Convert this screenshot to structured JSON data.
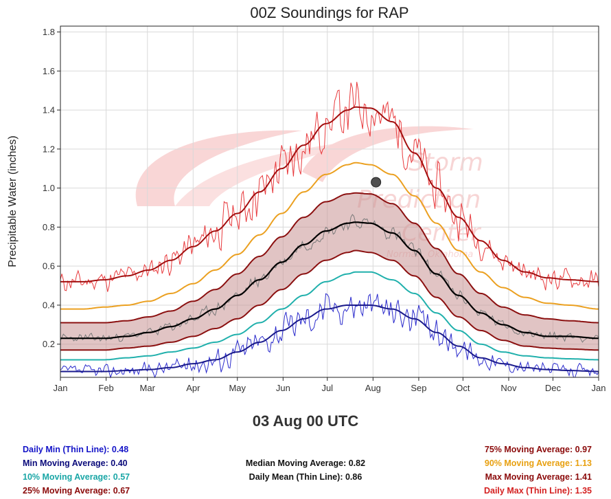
{
  "title": "00Z Soundings for RAP",
  "date_label": "03 Aug 00 UTC",
  "watermark": {
    "line1": "Storm",
    "line2": "Prediction",
    "line3": "Center",
    "line4": "Norman, Oklahoma"
  },
  "colors": {
    "daily_max": "#e8393c",
    "max_avg": "#a30f0f",
    "p90": "#eba020",
    "p75": "#8b1010",
    "median": "#000000",
    "daily_mean": "#7a7a7a",
    "p25": "#8b1010",
    "band_fill": "#c99393",
    "p10": "#20b0ac",
    "min_avg": "#1a1a8c",
    "daily_min": "#2a2acc",
    "marker": "#505050"
  },
  "legend": {
    "left": [
      {
        "label": "Daily Min (Thin Line):",
        "value": "0.48",
        "color": "#1414c8"
      },
      {
        "label": "Min Moving Average:",
        "value": "0.40",
        "color": "#0a0a7a"
      },
      {
        "label": "10% Moving Average:",
        "value": "0.57",
        "color": "#1aa6a6"
      },
      {
        "label": "25% Moving Average:",
        "value": "0.67",
        "color": "#8b0a0a"
      }
    ],
    "middle": [
      {
        "label": "Median Moving Average:",
        "value": "0.82"
      },
      {
        "label": "Daily Mean (Thin Line):",
        "value": "0.86"
      }
    ],
    "right": [
      {
        "label": "75% Moving Average:",
        "value": "0.97",
        "color": "#8b0a0a"
      },
      {
        "label": "90% Moving Average:",
        "value": "1.13",
        "color": "#e8a010"
      },
      {
        "label": "Max Moving Average:",
        "value": "1.41",
        "color": "#8b0a0a"
      },
      {
        "label": "Daily Max (Thin Line):",
        "value": "1.35",
        "color": "#d42020"
      }
    ]
  },
  "chart_data": {
    "type": "line",
    "title": "00Z Soundings for RAP",
    "xlabel": "",
    "ylabel": "Precipitable Water (inches)",
    "xlim": [
      0,
      365
    ],
    "ylim": [
      0.03,
      1.83
    ],
    "yticks": [
      0.2,
      0.4,
      0.6,
      0.8,
      1.0,
      1.2,
      1.4,
      1.6,
      1.8
    ],
    "ytick_labels": [
      "0.2",
      "0.4",
      "0.6",
      "0.8",
      "1.0",
      "1.2",
      "1.4",
      "1.6",
      "1.8"
    ],
    "xticks": [
      0,
      31,
      59,
      90,
      120,
      151,
      181,
      212,
      243,
      273,
      304,
      334,
      365
    ],
    "xtick_labels": [
      "Jan",
      "Feb",
      "Mar",
      "Apr",
      "May",
      "Jun",
      "Jul",
      "Aug",
      "Sep",
      "Oct",
      "Nov",
      "Dec",
      "Jan"
    ],
    "grid": true,
    "days": [
      0,
      15,
      30,
      45,
      60,
      75,
      90,
      105,
      120,
      135,
      150,
      165,
      180,
      195,
      200,
      210,
      225,
      240,
      255,
      270,
      285,
      300,
      315,
      330,
      345,
      365
    ],
    "series": [
      {
        "name": "Max Moving Average",
        "color": "#a30f0f",
        "width": 2,
        "values": [
          0.52,
          0.52,
          0.53,
          0.55,
          0.58,
          0.63,
          0.7,
          0.78,
          0.87,
          0.98,
          1.1,
          1.22,
          1.33,
          1.4,
          1.415,
          1.41,
          1.34,
          1.18,
          1.0,
          0.85,
          0.73,
          0.63,
          0.57,
          0.54,
          0.53,
          0.52
        ]
      },
      {
        "name": "90% Moving Average",
        "color": "#eba020",
        "width": 2,
        "values": [
          0.38,
          0.38,
          0.39,
          0.4,
          0.42,
          0.46,
          0.51,
          0.58,
          0.66,
          0.76,
          0.87,
          0.98,
          1.07,
          1.12,
          1.13,
          1.12,
          1.07,
          0.96,
          0.82,
          0.68,
          0.57,
          0.49,
          0.44,
          0.41,
          0.4,
          0.38
        ]
      },
      {
        "name": "75% Moving Average",
        "color": "#8b1010",
        "width": 2,
        "values": [
          0.31,
          0.31,
          0.31,
          0.32,
          0.34,
          0.37,
          0.42,
          0.48,
          0.56,
          0.65,
          0.75,
          0.85,
          0.93,
          0.97,
          0.975,
          0.97,
          0.92,
          0.82,
          0.69,
          0.56,
          0.46,
          0.39,
          0.35,
          0.33,
          0.32,
          0.31
        ]
      },
      {
        "name": "Median Moving Average",
        "color": "#000000",
        "width": 2.2,
        "values": [
          0.23,
          0.23,
          0.23,
          0.24,
          0.26,
          0.29,
          0.33,
          0.38,
          0.45,
          0.53,
          0.62,
          0.71,
          0.78,
          0.82,
          0.825,
          0.82,
          0.77,
          0.68,
          0.56,
          0.45,
          0.36,
          0.3,
          0.26,
          0.24,
          0.24,
          0.23
        ]
      },
      {
        "name": "25% Moving Average",
        "color": "#8b1010",
        "width": 2,
        "values": [
          0.17,
          0.17,
          0.17,
          0.18,
          0.19,
          0.21,
          0.24,
          0.28,
          0.33,
          0.4,
          0.48,
          0.56,
          0.63,
          0.67,
          0.68,
          0.67,
          0.63,
          0.55,
          0.44,
          0.34,
          0.27,
          0.22,
          0.19,
          0.18,
          0.175,
          0.17
        ]
      },
      {
        "name": "10% Moving Average",
        "color": "#20b0ac",
        "width": 2,
        "values": [
          0.12,
          0.12,
          0.12,
          0.13,
          0.14,
          0.16,
          0.18,
          0.21,
          0.25,
          0.31,
          0.38,
          0.45,
          0.52,
          0.56,
          0.57,
          0.57,
          0.53,
          0.46,
          0.36,
          0.27,
          0.2,
          0.16,
          0.14,
          0.13,
          0.125,
          0.12
        ]
      },
      {
        "name": "Min Moving Average",
        "color": "#1a1a8c",
        "width": 2,
        "values": [
          0.06,
          0.06,
          0.06,
          0.065,
          0.07,
          0.08,
          0.1,
          0.12,
          0.16,
          0.21,
          0.27,
          0.33,
          0.38,
          0.4,
          0.4,
          0.4,
          0.38,
          0.33,
          0.26,
          0.19,
          0.13,
          0.1,
          0.08,
          0.07,
          0.065,
          0.06
        ]
      }
    ],
    "thin_series": [
      {
        "name": "Daily Max (Thin Line)",
        "color": "#e8393c",
        "width": 1,
        "base": "Max Moving Average",
        "noise": 0.05,
        "noise_summer": 0.13,
        "seed": 11,
        "values_note": "daily values follow max moving average with scatter"
      },
      {
        "name": "Daily Mean (Thin Line)",
        "color": "#7a7a7a",
        "width": 1,
        "base": "Median Moving Average",
        "noise": 0.02,
        "noise_summer": 0.035,
        "seed": 23
      },
      {
        "name": "Daily Min (Thin Line)",
        "color": "#2a2acc",
        "width": 1,
        "base": "Min Moving Average",
        "noise": 0.03,
        "noise_summer": 0.08,
        "seed": 37
      }
    ],
    "current_point": {
      "day": 214,
      "value": 1.03,
      "label": "03 Aug 00 UTC"
    }
  }
}
